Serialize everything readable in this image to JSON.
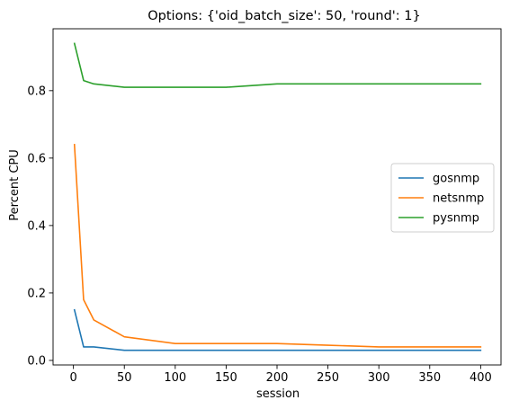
{
  "chart_data": {
    "type": "line",
    "title": "Options: {'oid_batch_size': 50, 'round': 1}",
    "xlabel": "session",
    "ylabel": "Percent CPU",
    "xlim": [
      -20,
      420
    ],
    "ylim": [
      -0.0135,
      0.9835
    ],
    "xticks": [
      0,
      50,
      100,
      150,
      200,
      250,
      300,
      350,
      400
    ],
    "xtick_labels": [
      "0",
      "50",
      "100",
      "150",
      "200",
      "250",
      "300",
      "350",
      "400"
    ],
    "yticks": [
      0.0,
      0.2,
      0.4,
      0.6,
      0.8
    ],
    "ytick_labels": [
      "0.0",
      "0.2",
      "0.4",
      "0.6",
      "0.8"
    ],
    "grid": false,
    "legend_position": "center-right",
    "x": [
      1,
      10,
      20,
      50,
      100,
      150,
      200,
      250,
      300,
      350,
      400
    ],
    "series": [
      {
        "name": "gosnmp",
        "color": "#1f77b4",
        "values": [
          0.15,
          0.04,
          0.04,
          0.03,
          0.03,
          0.03,
          0.03,
          0.03,
          0.03,
          0.03,
          0.03
        ]
      },
      {
        "name": "netsnmp",
        "color": "#ff7f0e",
        "values": [
          0.64,
          0.18,
          0.12,
          0.07,
          0.05,
          0.05,
          0.05,
          0.045,
          0.04,
          0.04,
          0.04
        ]
      },
      {
        "name": "pysnmp",
        "color": "#2ca02c",
        "values": [
          0.94,
          0.83,
          0.82,
          0.81,
          0.81,
          0.81,
          0.82,
          0.82,
          0.82,
          0.82,
          0.82
        ]
      }
    ]
  }
}
